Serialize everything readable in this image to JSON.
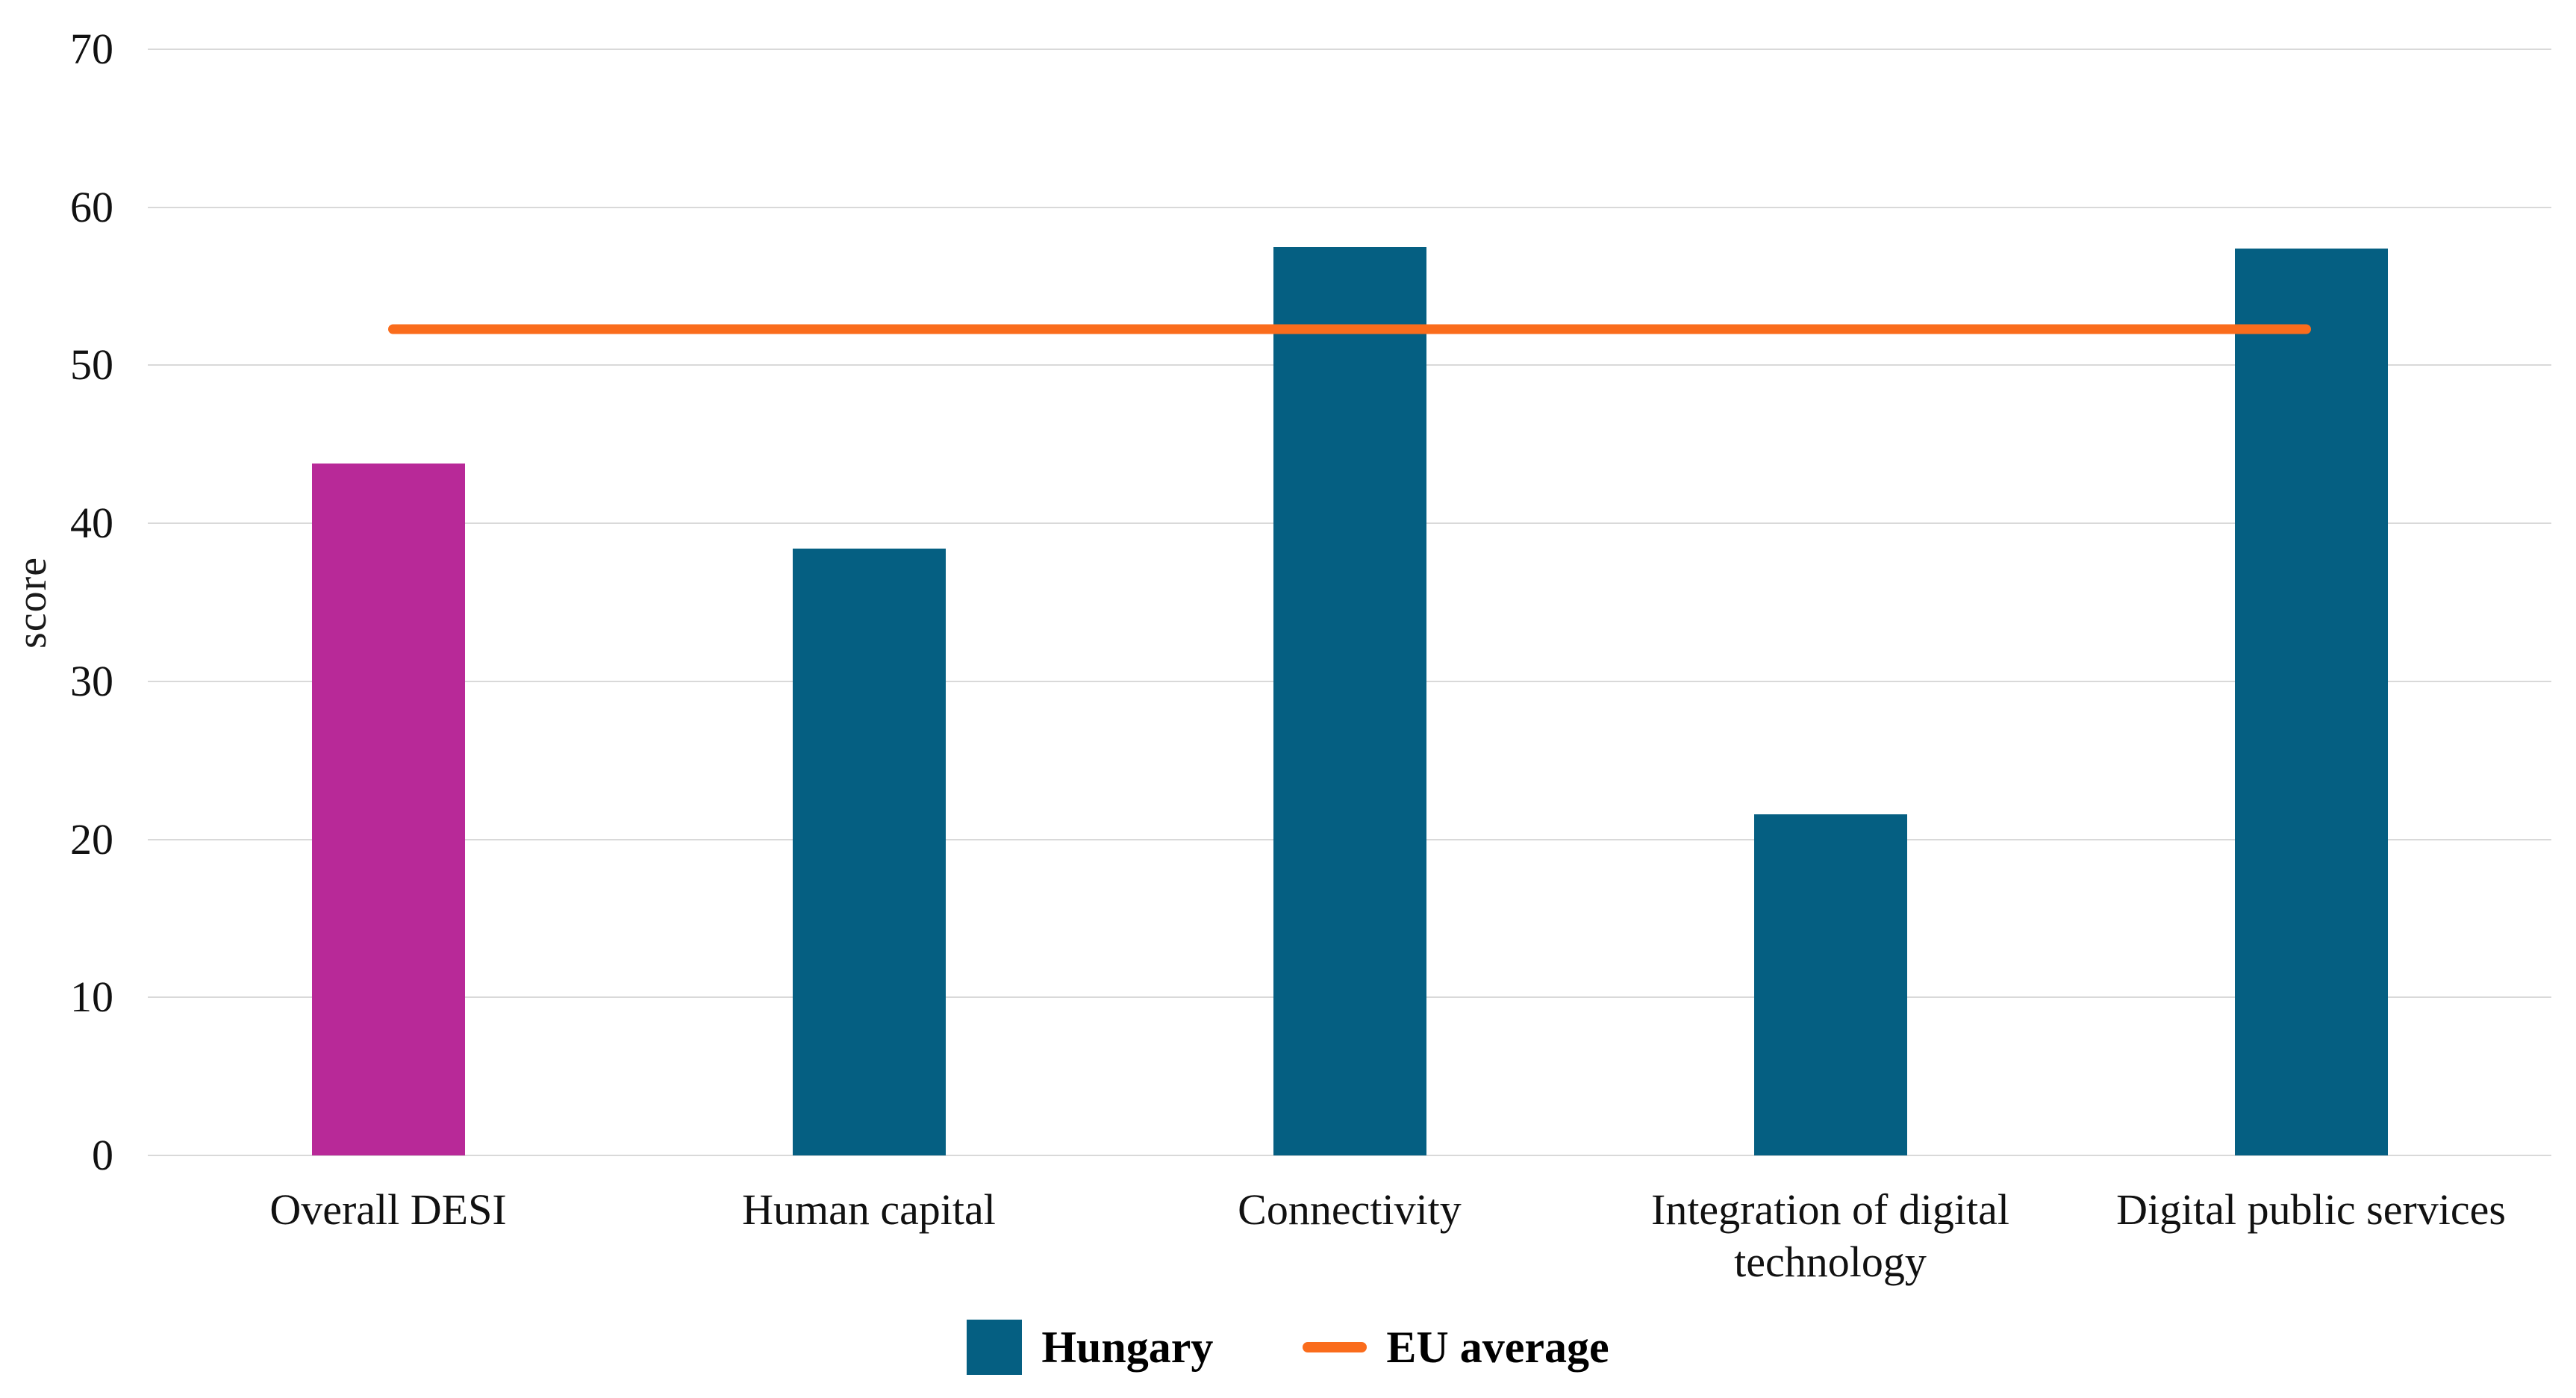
{
  "chart_data": {
    "type": "bar",
    "title": "",
    "xlabel": "",
    "ylabel": "score",
    "ylim": [
      0,
      70
    ],
    "yticks": [
      0,
      10,
      20,
      30,
      40,
      50,
      60,
      70
    ],
    "grid": true,
    "legend_position": "bottom",
    "categories": [
      "Overall DESI",
      "Human capital",
      "Connectivity",
      "Integration of digital technology",
      "Digital public services"
    ],
    "series": [
      {
        "name": "Hungary",
        "type": "bar",
        "values": [
          43.8,
          38.4,
          57.5,
          21.6,
          57.4
        ],
        "bar_colors": [
          "#B82998",
          "#055F82",
          "#055F82",
          "#055F82",
          "#055F82"
        ]
      },
      {
        "name": "EU average",
        "type": "line",
        "value": 52.3,
        "color": "#FA6C1C",
        "span": "first-to-last-category-center"
      }
    ],
    "legend": [
      {
        "label": "Hungary",
        "swatch": "square",
        "color": "#055F82"
      },
      {
        "label": "EU average",
        "swatch": "line",
        "color": "#FA6C1C"
      }
    ],
    "colors": {
      "hungary_bar": "#055F82",
      "overall_desi_bar": "#B82998",
      "eu_average_line": "#FA6C1C",
      "gridline": "#D9D9D9",
      "text": "#111111",
      "background": "#FFFFFF"
    }
  }
}
